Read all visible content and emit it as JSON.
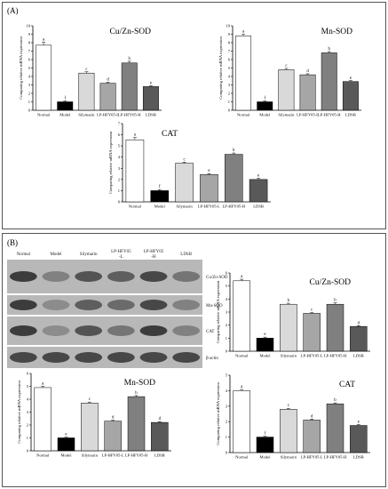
{
  "panels": {
    "a_label": "(A)",
    "b_label": "(B)"
  },
  "western_blot": {
    "lanes": [
      "Normal",
      "Model",
      "Silymarin",
      "LP-HFY05\n-L",
      "LP-HFY05\n-H",
      "LDSB"
    ],
    "bands": [
      "Cu/Zn-SOD",
      "Mn-SOD",
      "CAT",
      "β-actin"
    ]
  },
  "chart_data": [
    {
      "type": "bar",
      "panel": "A",
      "title": "Cu/Zn-SOD",
      "ylabel": "Comparing relative mRNA expression",
      "categories": [
        "Normal",
        "Model",
        "Silymarin",
        "LP-HFY05-L",
        "LP-HFY05-H",
        "LDSB"
      ],
      "values": [
        7.7,
        1.0,
        4.4,
        3.2,
        5.6,
        2.8
      ],
      "errors": [
        0.35,
        0.1,
        0.15,
        0.12,
        0.2,
        0.1
      ],
      "letters": [
        "a",
        "f",
        "c",
        "d",
        "b",
        "e"
      ],
      "colors": [
        "#ffffff",
        "#000000",
        "#d9d9d9",
        "#a6a6a6",
        "#808080",
        "#595959"
      ],
      "ylim": [
        0,
        10
      ],
      "yticks": [
        0,
        1,
        2,
        3,
        4,
        5,
        6,
        7,
        8,
        9,
        10
      ]
    },
    {
      "type": "bar",
      "panel": "A",
      "title": "Mn-SOD",
      "ylabel": "Comparing relative mRNA expression",
      "categories": [
        "Normal",
        "Model",
        "Silymarin",
        "LP-HFY05-L",
        "LP-HFY05-H",
        "LDSB"
      ],
      "values": [
        8.8,
        1.0,
        4.8,
        4.2,
        6.8,
        3.4
      ],
      "errors": [
        0.2,
        0.1,
        0.15,
        0.12,
        0.15,
        0.1
      ],
      "letters": [
        "a",
        "f",
        "c",
        "d",
        "b",
        "e"
      ],
      "colors": [
        "#ffffff",
        "#000000",
        "#d9d9d9",
        "#a6a6a6",
        "#808080",
        "#595959"
      ],
      "ylim": [
        0,
        10
      ],
      "yticks": [
        0,
        1,
        2,
        3,
        4,
        5,
        6,
        7,
        8,
        9,
        10
      ]
    },
    {
      "type": "bar",
      "panel": "A",
      "title": "CAT",
      "ylabel": "Comparing relative mRNA expression",
      "categories": [
        "Normal",
        "Model",
        "Silymarin",
        "LP-HFY05-L",
        "LP-HFY05-H",
        "LDSB"
      ],
      "values": [
        5.55,
        1.0,
        3.45,
        2.45,
        4.25,
        2.0
      ],
      "errors": [
        0.2,
        0.1,
        0.1,
        0.08,
        0.12,
        0.1
      ],
      "letters": [
        "a",
        "f",
        "c",
        "e",
        "b",
        "e"
      ],
      "colors": [
        "#ffffff",
        "#000000",
        "#d9d9d9",
        "#a6a6a6",
        "#808080",
        "#595959"
      ],
      "ylim": [
        0,
        7
      ],
      "yticks": [
        0,
        1,
        2,
        3,
        4,
        5,
        6,
        7
      ]
    },
    {
      "type": "bar",
      "panel": "B",
      "title": "Cu/Zn-SOD",
      "ylabel": "Comparing relative mRNA expression",
      "categories": [
        "Normal",
        "Model",
        "Silymarin",
        "LP-HFY05-L",
        "LP-HFY05-H",
        "LDSB"
      ],
      "values": [
        5.4,
        1.0,
        3.6,
        2.9,
        3.6,
        1.9
      ],
      "errors": [
        0.12,
        0.08,
        0.08,
        0.06,
        0.1,
        0.06
      ],
      "letters": [
        "a",
        "e",
        "b",
        "c",
        "b",
        "d"
      ],
      "colors": [
        "#ffffff",
        "#000000",
        "#d9d9d9",
        "#a6a6a6",
        "#808080",
        "#595959"
      ],
      "ylim": [
        0,
        6
      ],
      "yticks": [
        0,
        1,
        2,
        3,
        4,
        5,
        6
      ]
    },
    {
      "type": "bar",
      "panel": "B",
      "title": "Mn-SOD",
      "ylabel": "Comparing relative mRNA expression",
      "categories": [
        "Normal",
        "Model",
        "Silymarin",
        "LP-HFY05-L",
        "LP-HFY05-H",
        "LDSB"
      ],
      "values": [
        4.9,
        1.0,
        3.7,
        2.3,
        4.2,
        2.2
      ],
      "errors": [
        0.1,
        0.06,
        0.08,
        0.07,
        0.08,
        0.06
      ],
      "letters": [
        "a",
        "e",
        "c",
        "d",
        "b",
        "d"
      ],
      "colors": [
        "#ffffff",
        "#000000",
        "#d9d9d9",
        "#a6a6a6",
        "#808080",
        "#595959"
      ],
      "ylim": [
        0,
        6
      ],
      "yticks": [
        0,
        1,
        2,
        3,
        4,
        5,
        6
      ]
    },
    {
      "type": "bar",
      "panel": "B",
      "title": "CAT",
      "ylabel": "Comparing relative mRNA expression",
      "categories": [
        "Normal",
        "Model",
        "Silymarin",
        "LP-HFY05-L",
        "LP-HFY05-H",
        "LDSB"
      ],
      "values": [
        4.0,
        1.0,
        2.8,
        2.1,
        3.15,
        1.75
      ],
      "errors": [
        0.08,
        0.05,
        0.06,
        0.06,
        0.06,
        0.06
      ],
      "letters": [
        "a",
        "f",
        "c",
        "d",
        "b",
        "e"
      ],
      "colors": [
        "#ffffff",
        "#000000",
        "#d9d9d9",
        "#a6a6a6",
        "#808080",
        "#595959"
      ],
      "ylim": [
        0,
        5
      ],
      "yticks": [
        0,
        1,
        2,
        3,
        4,
        5
      ]
    }
  ]
}
